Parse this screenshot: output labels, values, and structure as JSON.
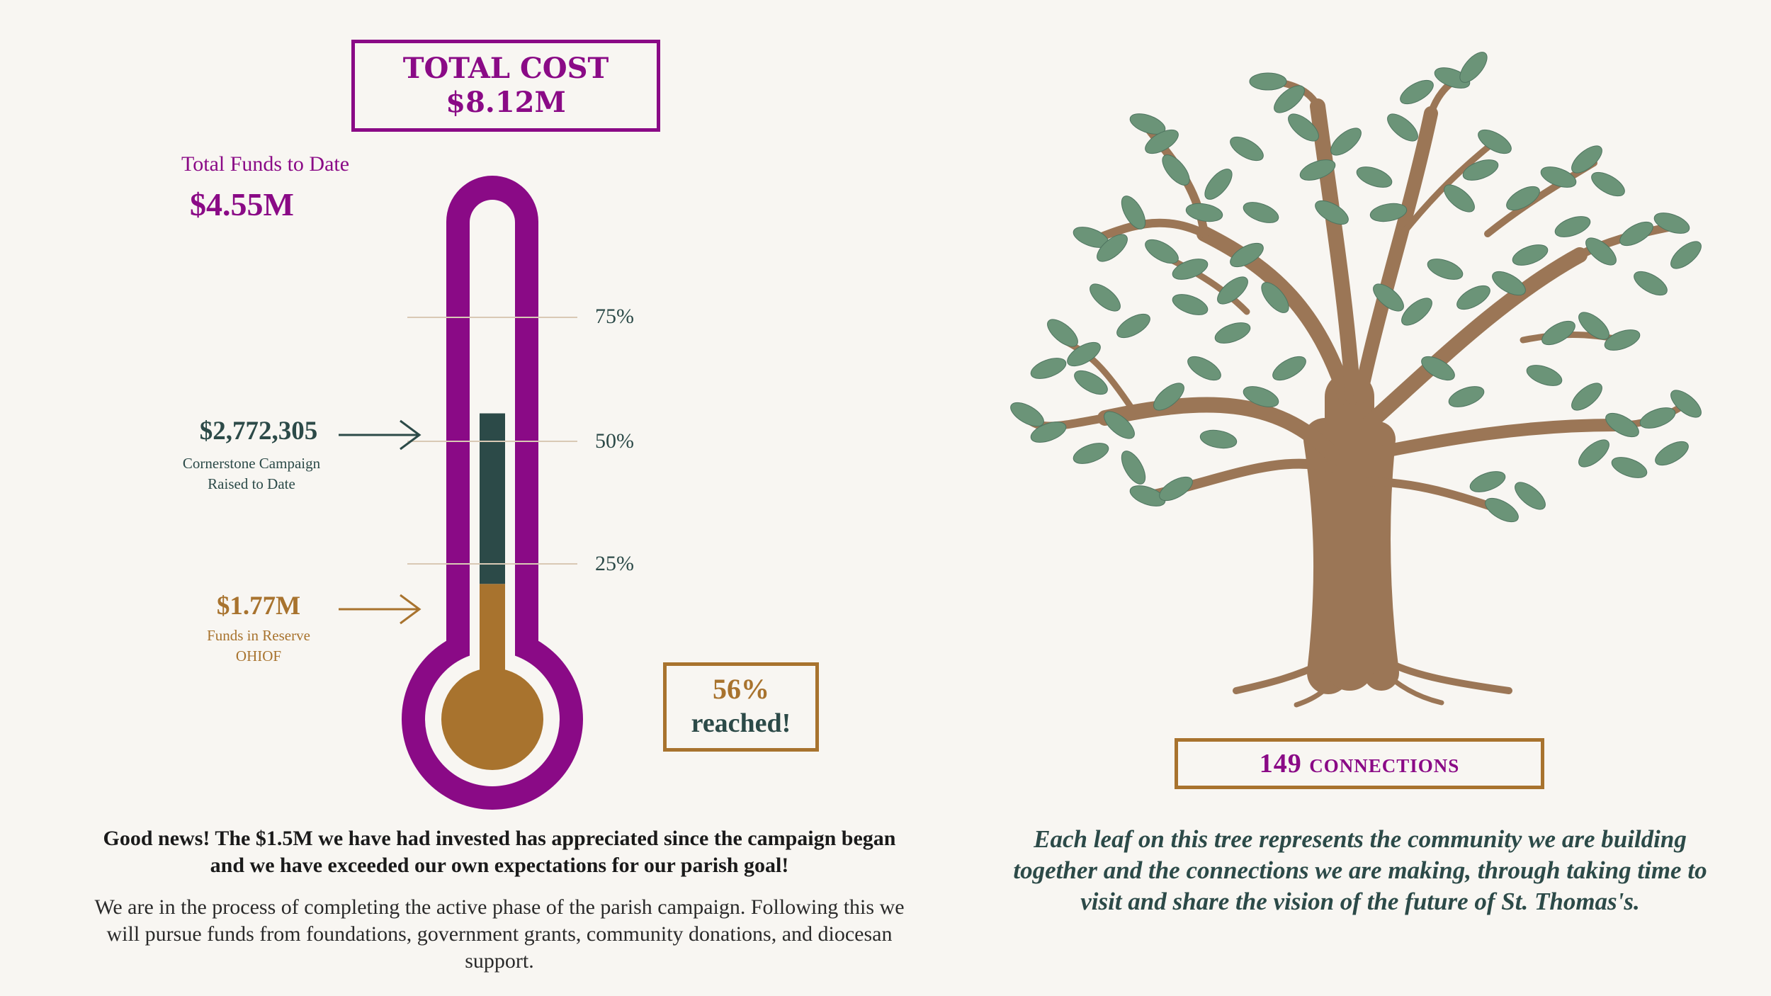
{
  "total_cost": {
    "label": "TOTAL COST",
    "value": "$8.12M"
  },
  "total_funds": {
    "label": "Total Funds to Date",
    "value": "$4.55M"
  },
  "thermometer": {
    "progress_percent": 56,
    "campaign_fraction": 0.34,
    "reserve_fraction": 0.22,
    "ticks": [
      "75%",
      "50%",
      "25%"
    ],
    "colors": {
      "frame": "#8a0a86",
      "campaign": "#2c4a48",
      "reserve": "#a8732e"
    }
  },
  "campaign": {
    "value": "$2,772,305",
    "line1": "Cornerstone Campaign",
    "line2": "Raised to Date"
  },
  "reserve": {
    "value": "$1.77M",
    "line1": "Funds in Reserve",
    "line2": "OHIOF"
  },
  "reached": {
    "percent": "56%",
    "text": "reached!"
  },
  "good_news": "Good news! The $1.5M we have had invested has appreciated since the campaign began and we have exceeded our own expectations for our parish goal!",
  "process": "We are in the process of completing the active phase of the parish campaign. Following this we will pursue funds from foundations, government grants, community donations, and diocesan support.",
  "connections": "149 connections",
  "tree_caption": "Each leaf on this tree represents the community we are building together and the connections we are making, through taking time to visit and share the vision of the future of St. Thomas's.",
  "tree": {
    "icon": "tree-illustration",
    "trunk_color": "#9b7656",
    "leaf_color": "#6b9478"
  }
}
